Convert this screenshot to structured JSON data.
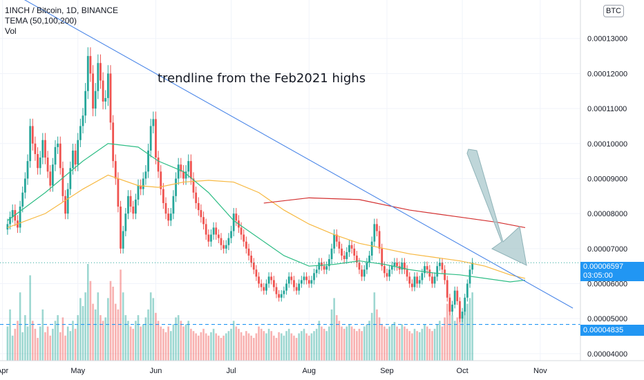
{
  "header": {
    "symbol_line": "1INCH / Bitcoin, 1D, BINANCE",
    "indicator_line": "TEMA (50,100,200)",
    "volume_line": "Vol",
    "currency_badge": "BTC"
  },
  "annotation": "trendline from the Feb2021 highs",
  "current_price": {
    "value": "0.00006597",
    "countdown": "03:05:00"
  },
  "support_price": {
    "value": "0.00004835"
  },
  "colors": {
    "up": "#26a69a",
    "down": "#ef5350",
    "tema50": "#2ebd85",
    "tema100": "#f7b840",
    "tema200": "#d32f2f",
    "trendline": "#4a86e8",
    "label_bg": "#2196f3",
    "arrow": "#a9c8cc"
  },
  "chart_data": {
    "type": "candlestick",
    "title": "1INCH / Bitcoin, 1D, BINANCE",
    "y_axis_side": "right",
    "ylim": [
      3.8e-05,
      0.000141
    ],
    "y_ticks": [
      "0.00004000",
      "0.00005000",
      "0.00006000",
      "0.00007000",
      "0.00008000",
      "0.00009000",
      "0.00010000",
      "0.00011000",
      "0.00012000",
      "0.00013000"
    ],
    "x_ticks": [
      "Apr",
      "May",
      "Jun",
      "Jul",
      "Aug",
      "Sep",
      "Oct",
      "Nov"
    ],
    "x_tick_days": [
      -2,
      28,
      59,
      89,
      120,
      151,
      181,
      212
    ],
    "x_range_days": [
      -3,
      228
    ],
    "closes": [
      7.7e-05,
      7.9e-05,
      8.1e-05,
      7.8e-05,
      7.6e-05,
      8.2e-05,
      8.6e-05,
      9e-05,
      9.5e-05,
      0.000105,
      0.0001,
      9.7e-05,
      9.3e-05,
      9.6e-05,
      0.000101,
      9.6e-05,
      9.2e-05,
      8.8e-05,
      9.4e-05,
      9.9e-05,
      0.0001,
      9.3e-05,
      8.5e-05,
      8e-05,
      8.7e-05,
      9.3e-05,
      9.8e-05,
      9.4e-05,
      0.000101,
      0.000105,
      0.000108,
      0.000115,
      0.000125,
      0.00012,
      0.00011,
      0.000115,
      0.000123,
      0.000118,
      0.000112,
      0.000113,
      0.00012,
      0.000106,
      9.5e-05,
      9e-05,
      8.2e-05,
      7e-05,
      7.5e-05,
      8e-05,
      8.5e-05,
      8.2e-05,
      8e-05,
      8.4e-05,
      8.8e-05,
      8.7e-05,
      9e-05,
      9.2e-05,
      9.8e-05,
      0.000105,
      0.000107,
      9.6e-05,
      9.2e-05,
      8.7e-05,
      8.3e-05,
      8e-05,
      7.8e-05,
      8e-05,
      8.5e-05,
      9e-05,
      9.4e-05,
      9.2e-05,
      9e-05,
      9.2e-05,
      9.5e-05,
      9e-05,
      8.6e-05,
      8.3e-05,
      8.1e-05,
      7.9e-05,
      7.7e-05,
      7.4e-05,
      7.2e-05,
      7.4e-05,
      7.6e-05,
      7.4e-05,
      7.3e-05,
      7.1e-05,
      7e-05,
      7.1e-05,
      7.3e-05,
      7.5e-05,
      8e-05,
      7.8e-05,
      7.6e-05,
      7.4e-05,
      7.2e-05,
      7e-05,
      6.8e-05,
      6.6e-05,
      6.4e-05,
      6.2e-05,
      6e-05,
      5.9e-05,
      5.8e-05,
      6e-05,
      6.2e-05,
      6.1e-05,
      5.9e-05,
      5.7e-05,
      5.6e-05,
      5.7e-05,
      5.8e-05,
      6e-05,
      6.2e-05,
      6.1e-05,
      5.9e-05,
      5.8e-05,
      6e-05,
      6.1e-05,
      6.2e-05,
      6.1e-05,
      6e-05,
      6.1e-05,
      6.3e-05,
      6.4e-05,
      6.6e-05,
      6.5e-05,
      6.4e-05,
      6.5e-05,
      6.7e-05,
      7e-05,
      7.4e-05,
      7.2e-05,
      7e-05,
      6.8e-05,
      6.7e-05,
      6.9e-05,
      7.1e-05,
      7e-05,
      6.8e-05,
      6.6e-05,
      6.4e-05,
      6.2e-05,
      6.4e-05,
      6.6e-05,
      6.8e-05,
      7.2e-05,
      7.7e-05,
      7.5e-05,
      7e-05,
      6.5e-05,
      6.3e-05,
      6.2e-05,
      6.4e-05,
      6.5e-05,
      6.6e-05,
      6.5e-05,
      6.4e-05,
      6.6e-05,
      6.4e-05,
      6.2e-05,
      6e-05,
      5.9e-05,
      6.2e-05,
      6e-05,
      6.1e-05,
      6.3e-05,
      6.5e-05,
      6.4e-05,
      6.2e-05,
      6e-05,
      6.2e-05,
      6.5e-05,
      6.6e-05,
      6.4e-05,
      6.1e-05,
      5.6e-05,
      5.2e-05,
      5.4e-05,
      5.8e-05,
      5.5e-05,
      5e-05,
      5.2e-05,
      5.6e-05,
      6e-05,
      6.4e-05,
      6.6e-05
    ],
    "tema50": [
      [
        0,
        7.8e-05
      ],
      [
        15,
        8.6e-05
      ],
      [
        30,
        9.5e-05
      ],
      [
        40,
        0.0001
      ],
      [
        52,
        9.9e-05
      ],
      [
        60,
        9.5e-05
      ],
      [
        70,
        9.2e-05
      ],
      [
        80,
        8.6e-05
      ],
      [
        90,
        7.8e-05
      ],
      [
        100,
        7.3e-05
      ],
      [
        110,
        6.8e-05
      ],
      [
        120,
        6.5e-05
      ],
      [
        130,
        6.55e-05
      ],
      [
        140,
        6.65e-05
      ],
      [
        150,
        6.55e-05
      ],
      [
        160,
        6.4e-05
      ],
      [
        170,
        6.3e-05
      ],
      [
        180,
        6.25e-05
      ],
      [
        190,
        6.15e-05
      ],
      [
        200,
        6.05e-05
      ],
      [
        206,
        6.1e-05
      ]
    ],
    "tema100": [
      [
        0,
        7.6e-05
      ],
      [
        15,
        8e-05
      ],
      [
        30,
        8.7e-05
      ],
      [
        40,
        9.1e-05
      ],
      [
        52,
        8.8e-05
      ],
      [
        60,
        8.75e-05
      ],
      [
        70,
        8.9e-05
      ],
      [
        80,
        8.95e-05
      ],
      [
        90,
        8.9e-05
      ],
      [
        100,
        8.6e-05
      ],
      [
        110,
        8.1e-05
      ],
      [
        120,
        7.7e-05
      ],
      [
        130,
        7.4e-05
      ],
      [
        140,
        7.15e-05
      ],
      [
        150,
        7e-05
      ],
      [
        160,
        6.85e-05
      ],
      [
        170,
        6.75e-05
      ],
      [
        180,
        6.65e-05
      ],
      [
        190,
        6.5e-05
      ],
      [
        200,
        6.25e-05
      ],
      [
        206,
        6.15e-05
      ]
    ],
    "tema200": [
      [
        102,
        8.3e-05
      ],
      [
        120,
        8.45e-05
      ],
      [
        140,
        8.4e-05
      ],
      [
        160,
        8.1e-05
      ],
      [
        180,
        7.9e-05
      ],
      [
        195,
        7.75e-05
      ],
      [
        206,
        7.6e-05
      ]
    ],
    "trendline": [
      [
        -3,
        0.000145
      ],
      [
        225,
        5.3e-05
      ]
    ],
    "volumes": [
      30,
      45,
      22,
      28,
      35,
      60,
      25,
      40,
      30,
      75,
      35,
      28,
      20,
      30,
      45,
      25,
      30,
      22,
      28,
      35,
      40,
      25,
      38,
      22,
      30,
      26,
      35,
      28,
      40,
      55,
      48,
      60,
      85,
      70,
      50,
      45,
      60,
      40,
      35,
      38,
      55,
      70,
      65,
      50,
      45,
      80,
      60,
      40,
      35,
      30,
      28,
      35,
      40,
      30,
      32,
      38,
      45,
      60,
      55,
      42,
      35,
      30,
      28,
      25,
      30,
      26,
      32,
      38,
      40,
      35,
      30,
      32,
      35,
      28,
      26,
      24,
      22,
      25,
      28,
      24,
      22,
      25,
      28,
      24,
      22,
      20,
      22,
      24,
      26,
      28,
      35,
      30,
      28,
      25,
      22,
      26,
      24,
      22,
      20,
      24,
      30,
      28,
      26,
      24,
      28,
      26,
      22,
      20,
      25,
      24,
      22,
      26,
      28,
      24,
      22,
      20,
      24,
      26,
      28,
      24,
      22,
      24,
      26,
      28,
      35,
      30,
      28,
      26,
      30,
      45,
      55,
      40,
      35,
      30,
      28,
      30,
      32,
      30,
      28,
      26,
      28,
      26,
      30,
      32,
      35,
      42,
      60,
      45,
      38,
      32,
      30,
      28,
      30,
      32,
      34,
      30,
      28,
      32,
      30,
      28,
      26,
      24,
      28,
      26,
      25,
      28,
      32,
      30,
      28,
      26,
      28,
      32,
      35,
      30,
      38,
      50,
      45,
      40,
      35,
      38,
      48,
      40,
      45,
      50,
      55,
      60
    ]
  }
}
